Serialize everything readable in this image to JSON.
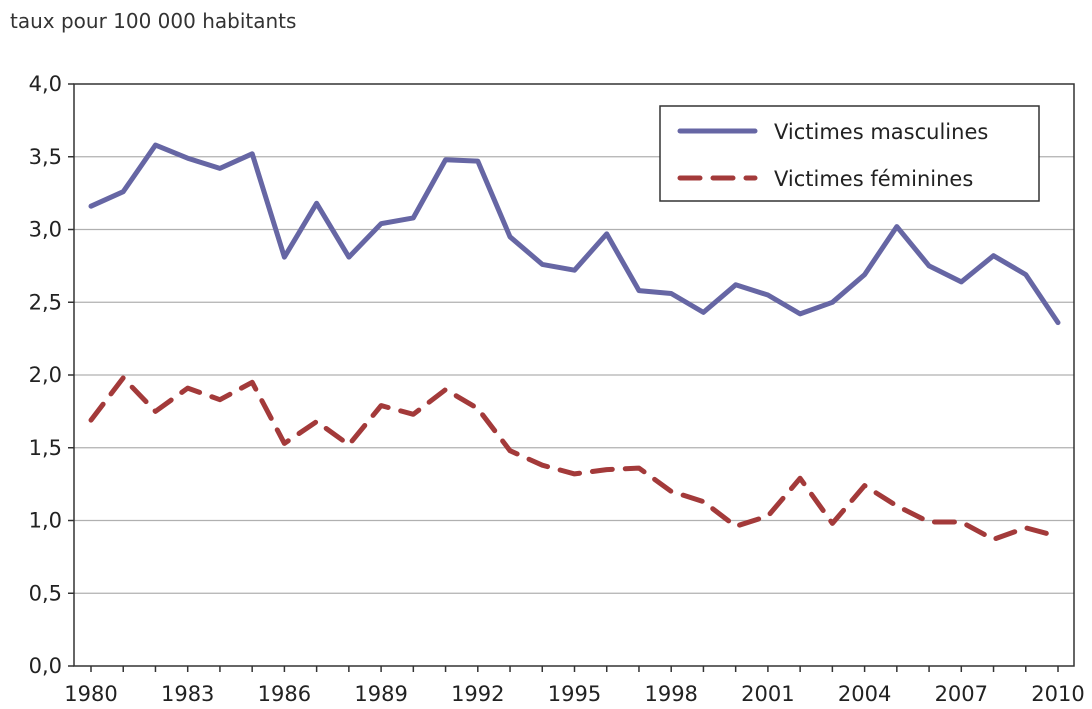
{
  "chart_data": {
    "type": "line",
    "ylabel": "taux pour 100 000 habitants",
    "xlabel": "",
    "ylim": [
      0,
      4
    ],
    "yticks": [
      "0,0",
      "0,5",
      "1,0",
      "1,5",
      "2,0",
      "2,5",
      "3,0",
      "3,5",
      "4,0"
    ],
    "xticks": [
      "1980",
      "1983",
      "1986",
      "1989",
      "1992",
      "1995",
      "1998",
      "2001",
      "2004",
      "2007",
      "2010"
    ],
    "x": [
      1980,
      1981,
      1982,
      1983,
      1984,
      1985,
      1986,
      1987,
      1988,
      1989,
      1990,
      1991,
      1992,
      1993,
      1994,
      1995,
      1996,
      1997,
      1998,
      1999,
      2000,
      2001,
      2002,
      2003,
      2004,
      2005,
      2006,
      2007,
      2008,
      2009,
      2010
    ],
    "grid": true,
    "legend_position": "top-right",
    "series": [
      {
        "name": "Victimes masculines",
        "color": "#6666a4",
        "style": "solid",
        "values": [
          3.16,
          3.26,
          3.58,
          3.49,
          3.42,
          3.52,
          2.81,
          3.18,
          2.81,
          3.04,
          3.08,
          3.48,
          3.47,
          2.95,
          2.76,
          2.72,
          2.97,
          2.58,
          2.56,
          2.43,
          2.62,
          2.55,
          2.42,
          2.5,
          2.69,
          3.02,
          2.75,
          2.64,
          2.82,
          2.69,
          2.36
        ]
      },
      {
        "name": "Victimes féminines",
        "color": "#a33a3a",
        "style": "dashed",
        "values": [
          1.69,
          1.98,
          1.75,
          1.91,
          1.83,
          1.95,
          1.53,
          1.68,
          1.52,
          1.79,
          1.73,
          1.9,
          1.77,
          1.48,
          1.38,
          1.32,
          1.35,
          1.36,
          1.2,
          1.13,
          0.96,
          1.03,
          1.29,
          0.98,
          1.24,
          1.1,
          0.99,
          0.99,
          0.87,
          0.95,
          0.89
        ]
      }
    ]
  }
}
